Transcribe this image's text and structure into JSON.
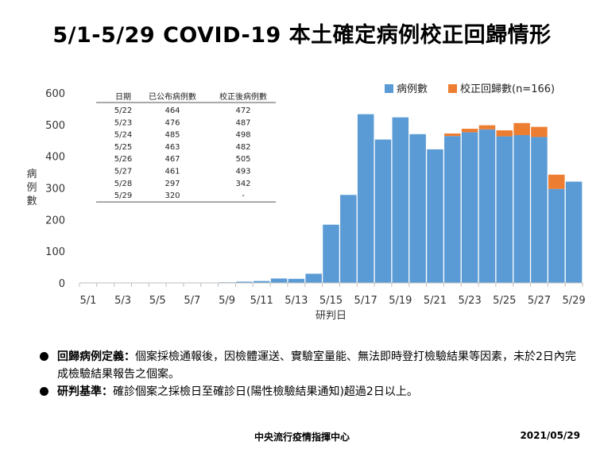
{
  "title": "5/1-5/29 COVID-19 本土確定病例校正回歸情形",
  "chart_data": {
    "type": "bar",
    "stacked": true,
    "categories": [
      "5/1",
      "5/2",
      "5/3",
      "5/4",
      "5/5",
      "5/6",
      "5/7",
      "5/8",
      "5/9",
      "5/10",
      "5/11",
      "5/12",
      "5/13",
      "5/14",
      "5/15",
      "5/16",
      "5/17",
      "5/18",
      "5/19",
      "5/20",
      "5/21",
      "5/22",
      "5/23",
      "5/24",
      "5/25",
      "5/26",
      "5/27",
      "5/28",
      "5/29"
    ],
    "x_tick_labels": [
      "5/1",
      "5/3",
      "5/5",
      "5/7",
      "5/9",
      "5/11",
      "5/13",
      "5/15",
      "5/17",
      "5/19",
      "5/21",
      "5/23",
      "5/25",
      "5/27",
      "5/29"
    ],
    "series": [
      {
        "name": "病例數",
        "color": "#5b9bd5",
        "values": [
          1,
          0,
          0,
          0,
          0,
          0,
          0,
          0,
          2,
          4,
          6,
          14,
          13,
          29,
          184,
          278,
          533,
          453,
          523,
          470,
          422,
          464,
          476,
          485,
          463,
          467,
          461,
          297,
          320
        ]
      },
      {
        "name": "校正回歸數(n=166)",
        "color": "#ed7d31",
        "values": [
          0,
          0,
          0,
          0,
          0,
          0,
          0,
          0,
          0,
          0,
          0,
          0,
          0,
          0,
          0,
          0,
          0,
          0,
          0,
          0,
          0,
          8,
          11,
          13,
          19,
          38,
          32,
          45,
          0
        ]
      }
    ],
    "ylim": [
      0,
      600
    ],
    "yticks": [
      0,
      100,
      200,
      300,
      400,
      500,
      600
    ],
    "ylabel": "病例數",
    "xlabel": "研判日",
    "legend_position": "top-right",
    "grid": false,
    "inset_table": {
      "headers": [
        "日期",
        "已公布病例數",
        "校正後病例數"
      ],
      "rows": [
        [
          "5/22",
          "464",
          "472"
        ],
        [
          "5/23",
          "476",
          "487"
        ],
        [
          "5/24",
          "485",
          "498"
        ],
        [
          "5/25",
          "463",
          "482"
        ],
        [
          "5/26",
          "467",
          "505"
        ],
        [
          "5/27",
          "461",
          "493"
        ],
        [
          "5/28",
          "297",
          "342"
        ],
        [
          "5/29",
          "320",
          "-"
        ]
      ]
    }
  },
  "notes": [
    {
      "term": "回歸病例定義：",
      "text": "個案採檢通報後，因檢體運送、實驗室量能、無法即時登打檢驗結果等因素，未於2日內完成檢驗結果報告之個案。"
    },
    {
      "term": "研判基準：",
      "text": "確診個案之採檢日至確診日(陽性檢驗結果通知)超過2日以上。"
    }
  ],
  "footer": {
    "org": "中央流行疫情指揮中心",
    "date": "2021/05/29"
  }
}
